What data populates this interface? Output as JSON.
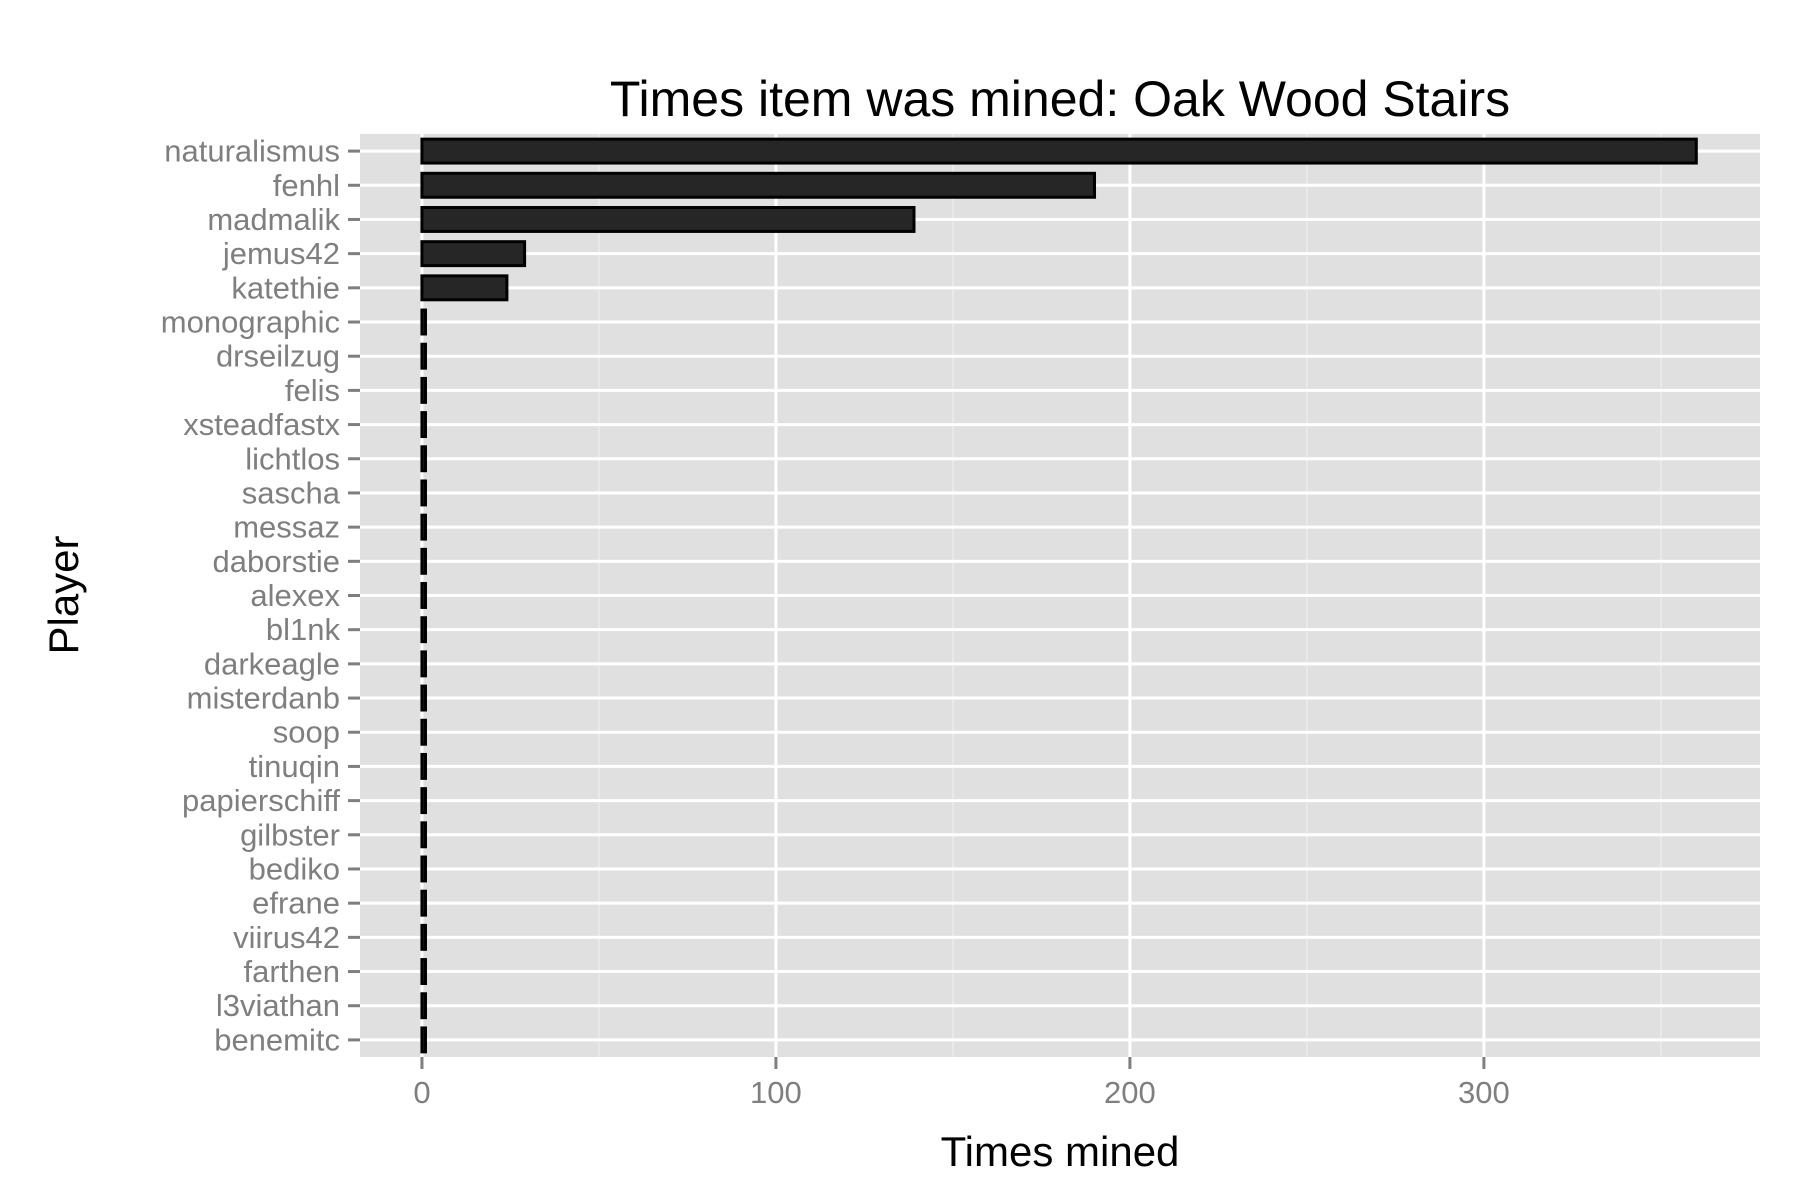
{
  "chart_data": {
    "type": "bar",
    "orientation": "horizontal",
    "title": "Times item was mined: Oak Wood Stairs",
    "xlabel": "Times mined",
    "ylabel": "Player",
    "categories": [
      "naturalismus",
      "fenhl",
      "madmalik",
      "jemus42",
      "katethie",
      "monographic",
      "drseilzug",
      "felis",
      "xsteadfastx",
      "lichtlos",
      "sascha",
      "messaz",
      "daborstie",
      "alexex",
      "bl1nk",
      "darkeagle",
      "misterdanb",
      "soop",
      "tinuqin",
      "papierschiff",
      "gilbster",
      "bediko",
      "efrane",
      "viirus42",
      "farthen",
      "l3viathan",
      "benemitc"
    ],
    "values": [
      360,
      190,
      139,
      29,
      24,
      1,
      1,
      1,
      1,
      1,
      1,
      1,
      1,
      1,
      1,
      1,
      1,
      1,
      1,
      1,
      1,
      1,
      1,
      1,
      1,
      1,
      1
    ],
    "xlim": [
      -17.5,
      378
    ],
    "xticks": [
      0,
      100,
      200,
      300
    ],
    "xtick_labels": [
      "0",
      "100",
      "200",
      "300"
    ],
    "grid": true,
    "bar_fill": "#262626",
    "bar_stroke": "#000000",
    "panel_background": "#e0e0e0",
    "grid_color": "#ffffff"
  }
}
